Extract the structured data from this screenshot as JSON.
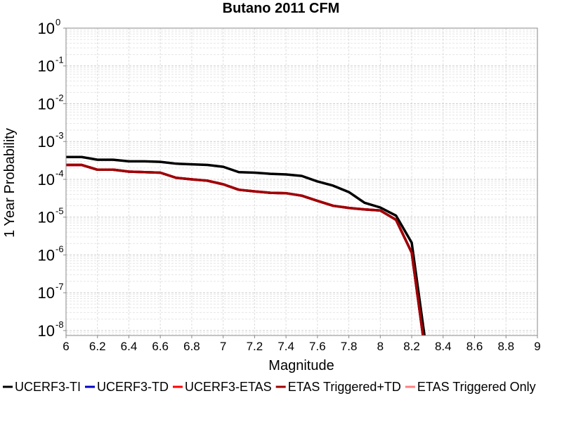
{
  "chart_data": {
    "type": "line",
    "title": "Butano 2011 CFM",
    "x_label": "Magnitude",
    "y_label": "1 Year Probability",
    "y_log": true,
    "grid": true,
    "legend_position": "bottom",
    "xlim": [
      6,
      9
    ],
    "xticks": [
      6,
      6.2,
      6.4,
      6.6,
      6.8,
      7,
      7.2,
      7.4,
      7.6,
      7.8,
      8,
      8.2,
      8.4,
      8.6,
      8.8,
      9
    ],
    "ylim": [
      7.4e-09,
      1
    ],
    "yticks": [
      {
        "value": 1,
        "label": "10",
        "exponent": "0"
      },
      {
        "value": 0.1,
        "label": "10",
        "exponent": "-1"
      },
      {
        "value": 0.01,
        "label": "10",
        "exponent": "-2"
      },
      {
        "value": 0.001,
        "label": "10",
        "exponent": "-3"
      },
      {
        "value": 0.0001,
        "label": "10",
        "exponent": "-4"
      },
      {
        "value": 1e-05,
        "label": "10",
        "exponent": "-5"
      },
      {
        "value": 1e-06,
        "label": "10",
        "exponent": "-6"
      },
      {
        "value": 1e-07,
        "label": "10",
        "exponent": "-7"
      },
      {
        "value": 1e-08,
        "label": "10",
        "exponent": "-8"
      }
    ],
    "x": [
      6,
      6.1,
      6.2,
      6.3,
      6.4,
      6.5,
      6.6,
      6.7,
      6.8,
      6.9,
      7,
      7.1,
      7.2,
      7.3,
      7.4,
      7.5,
      7.6,
      7.7,
      7.8,
      7.9,
      8,
      8.1,
      8.2,
      8.3
    ],
    "series": [
      {
        "name": "UCERF3-TI",
        "color": "#000000",
        "values": [
          0.00039,
          0.00039,
          0.00033,
          0.00033,
          0.0003,
          0.0003,
          0.00029,
          0.00026,
          0.00025,
          0.00024,
          0.000215,
          0.000155,
          0.00015,
          0.00014,
          0.000135,
          0.000123,
          8.8e-05,
          6.8e-05,
          4.6e-05,
          2.4e-05,
          1.8e-05,
          1.1e-05,
          2.1e-06,
          2e-09
        ]
      },
      {
        "name": "UCERF3-TD",
        "color": "#0000cc",
        "values": [
          0.00024,
          0.00024,
          0.00018,
          0.00018,
          0.00016,
          0.000155,
          0.00015,
          0.00011,
          0.0001,
          9.2e-05,
          7.4e-05,
          5.3e-05,
          4.8e-05,
          4.4e-05,
          4.3e-05,
          3.7e-05,
          2.7e-05,
          2e-05,
          1.75e-05,
          1.6e-05,
          1.5e-05,
          8.5e-06,
          1.15e-06,
          1e-09
        ]
      },
      {
        "name": "UCERF3-ETAS",
        "color": "#ff0000",
        "values": [
          0.00024,
          0.00024,
          0.00018,
          0.00018,
          0.00016,
          0.000155,
          0.00015,
          0.00011,
          0.0001,
          9.2e-05,
          7.4e-05,
          5.3e-05,
          4.8e-05,
          4.4e-05,
          4.3e-05,
          3.7e-05,
          2.7e-05,
          2e-05,
          1.75e-05,
          1.6e-05,
          1.5e-05,
          8.5e-06,
          1.15e-06,
          1e-09
        ]
      },
      {
        "name": "ETAS Triggered+TD",
        "color": "#a00000",
        "values": [
          0.00024,
          0.00024,
          0.00018,
          0.00018,
          0.00016,
          0.000155,
          0.00015,
          0.00011,
          0.0001,
          9.2e-05,
          7.4e-05,
          5.3e-05,
          4.8e-05,
          4.4e-05,
          4.3e-05,
          3.7e-05,
          2.7e-05,
          2e-05,
          1.75e-05,
          1.6e-05,
          1.5e-05,
          8.5e-06,
          1.15e-06,
          1e-09
        ]
      },
      {
        "name": "ETAS Triggered Only",
        "color": "#ff8080",
        "values": [
          null,
          null,
          null,
          null,
          null,
          null,
          null,
          null,
          null,
          null,
          null,
          null,
          null,
          null,
          null,
          null,
          null,
          null,
          null,
          null,
          null,
          null,
          null,
          null
        ]
      }
    ]
  }
}
